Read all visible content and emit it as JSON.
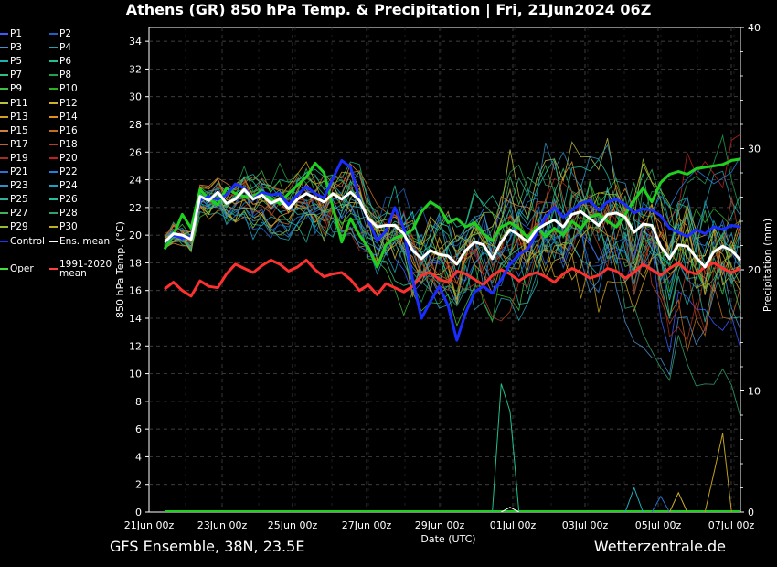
{
  "title": "Athens  (GR)  850 hPa Temp. & Precipitation | Fri, 21Jun2024 06Z",
  "footer_left": "GFS Ensemble, 38N, 23.5E",
  "footer_right": "Wetterzentrale.de",
  "legend": [
    {
      "label": "P1",
      "color": "#3a5cff"
    },
    {
      "label": "P2",
      "color": "#2060c0"
    },
    {
      "label": "P3",
      "color": "#4a90d0"
    },
    {
      "label": "P4",
      "color": "#2a9fb0"
    },
    {
      "label": "P5",
      "color": "#20b0b0"
    },
    {
      "label": "P6",
      "color": "#20c090"
    },
    {
      "label": "P7",
      "color": "#30c080"
    },
    {
      "label": "P8",
      "color": "#20a050"
    },
    {
      "label": "P9",
      "color": "#40c040"
    },
    {
      "label": "P10",
      "color": "#30b020"
    },
    {
      "label": "P11",
      "color": "#c0c040"
    },
    {
      "label": "P12",
      "color": "#d0b030"
    },
    {
      "label": "P13",
      "color": "#d0a020"
    },
    {
      "label": "P14",
      "color": "#e09020"
    },
    {
      "label": "P15",
      "color": "#d08040"
    },
    {
      "label": "P16",
      "color": "#c07020"
    },
    {
      "label": "P17",
      "color": "#c06030"
    },
    {
      "label": "P18",
      "color": "#b04020"
    },
    {
      "label": "P19",
      "color": "#a03020"
    },
    {
      "label": "P20",
      "color": "#c02020"
    },
    {
      "label": "P21",
      "color": "#3070d0"
    },
    {
      "label": "P22",
      "color": "#2080e0"
    },
    {
      "label": "P23",
      "color": "#3090c0"
    },
    {
      "label": "P24",
      "color": "#20a0c0"
    },
    {
      "label": "P25",
      "color": "#30b0a0"
    },
    {
      "label": "P26",
      "color": "#20c0a0"
    },
    {
      "label": "P27",
      "color": "#40b060"
    },
    {
      "label": "P28",
      "color": "#30a070"
    },
    {
      "label": "P29",
      "color": "#90c030"
    },
    {
      "label": "P30",
      "color": "#c0b020"
    },
    {
      "label": "Control",
      "color": "#2030ff"
    },
    {
      "label": "Ens. mean",
      "color": "#ffffff"
    },
    {
      "label": "Oper",
      "color": "#40e040"
    },
    {
      "label": "1991-2020\nmean",
      "color": "#ff4040"
    }
  ],
  "chart_data": {
    "type": "line",
    "x_ticks": [
      "21Jun 00z",
      "23Jun 00z",
      "25Jun 00z",
      "27Jun 00z",
      "29Jun 00z",
      "01Jul 00z",
      "03Jul 00z",
      "05Jul 00z",
      "07Jul 00z"
    ],
    "x_range": [
      "2024-06-21T00:00",
      "2024-07-07T00:00"
    ],
    "ylabel": "850 hPa Temp. (°C)",
    "ylim": [
      0,
      35
    ],
    "y_ticks": [
      0,
      2,
      4,
      6,
      8,
      10,
      12,
      14,
      16,
      18,
      20,
      22,
      24,
      26,
      28,
      30,
      32,
      34
    ],
    "y2label": "Precipitation (mm)",
    "y2lim": [
      0,
      40
    ],
    "y2_ticks": [
      0,
      10,
      20,
      30,
      40
    ],
    "xlabel": "Date (UTC)",
    "grid": true,
    "series": [
      {
        "name": "Ens. mean",
        "color": "#ffffff",
        "width": 3,
        "values": [
          19.5,
          20.1,
          20.0,
          19.7,
          22.8,
          22.5,
          23.1,
          22.3,
          22.6,
          23.3,
          22.6,
          22.9,
          22.3,
          22.6,
          21.9,
          22.6,
          23.0,
          22.7,
          22.4,
          23.0,
          22.6,
          23.1,
          22.5,
          21.2,
          20.6,
          20.7,
          20.7,
          20.1,
          18.9,
          18.3,
          18.9,
          18.6,
          18.5,
          17.9,
          18.9,
          19.5,
          19.3,
          18.3,
          19.5,
          20.4,
          20.0,
          19.5,
          20.4,
          20.8,
          21.1,
          20.6,
          21.5,
          21.7,
          21.2,
          20.7,
          21.5,
          21.6,
          21.3,
          20.2,
          20.8,
          20.7,
          19.2,
          18.3,
          19.3,
          19.2,
          18.4,
          17.7,
          18.8,
          19.2,
          18.9,
          18.2
        ]
      },
      {
        "name": "Control",
        "color": "#1a2cff",
        "width": 3,
        "values": [
          19.5,
          20.0,
          19.8,
          19.9,
          22.5,
          22.8,
          22.6,
          22.9,
          23.7,
          23.4,
          22.6,
          23.1,
          22.9,
          23.0,
          22.2,
          22.9,
          23.5,
          23.0,
          22.7,
          24.1,
          25.4,
          24.9,
          22.6,
          21.1,
          19.6,
          20.3,
          22.0,
          20.5,
          16.8,
          14.0,
          15.2,
          16.3,
          14.9,
          12.4,
          14.4,
          15.9,
          16.3,
          15.8,
          16.8,
          17.9,
          18.6,
          19.0,
          20.1,
          21.3,
          22.0,
          21.3,
          21.8,
          22.3,
          22.5,
          21.8,
          22.4,
          22.6,
          22.2,
          21.6,
          21.9,
          21.8,
          21.4,
          20.5,
          20.2,
          19.9,
          20.4,
          20.1,
          20.6,
          20.4,
          20.7,
          20.6
        ]
      },
      {
        "name": "Oper",
        "color": "#20d020",
        "width": 3,
        "values": [
          19.0,
          20.0,
          21.5,
          20.5,
          23.3,
          22.6,
          22.2,
          23.4,
          23.0,
          22.8,
          22.8,
          23.2,
          22.6,
          22.3,
          23.0,
          23.6,
          24.2,
          25.2,
          24.5,
          22.0,
          19.5,
          21.2,
          20.0,
          19.1,
          17.7,
          19.3,
          19.8,
          20.0,
          20.4,
          21.7,
          22.4,
          22.0,
          20.9,
          21.2,
          20.6,
          20.9,
          20.1,
          19.6,
          20.6,
          20.9,
          20.5,
          19.8,
          20.6,
          19.9,
          20.5,
          20.0,
          21.0,
          20.5,
          21.3,
          21.5,
          21.0,
          20.6,
          21.5,
          22.5,
          23.4,
          22.4,
          23.8,
          24.4,
          24.6,
          24.4,
          24.8,
          24.9,
          25.0,
          25.1,
          25.4,
          25.5
        ]
      },
      {
        "name": "1991-2020 mean",
        "color": "#ff3030",
        "width": 3,
        "values": [
          16.1,
          16.6,
          16.0,
          15.6,
          16.7,
          16.3,
          16.2,
          17.2,
          17.9,
          17.6,
          17.3,
          17.8,
          18.2,
          17.9,
          17.4,
          17.7,
          18.2,
          17.5,
          17.0,
          17.2,
          17.3,
          16.8,
          16.0,
          16.4,
          15.7,
          16.5,
          16.2,
          15.9,
          16.3,
          17.1,
          17.3,
          16.8,
          16.6,
          17.4,
          17.2,
          16.8,
          16.4,
          17.1,
          17.5,
          17.2,
          16.7,
          17.1,
          17.3,
          17.0,
          16.6,
          17.2,
          17.6,
          17.3,
          16.9,
          17.1,
          17.6,
          17.4,
          16.9,
          17.3,
          17.9,
          17.5,
          17.1,
          17.6,
          18.0,
          17.4,
          17.2,
          17.7,
          18.0,
          17.6,
          17.3,
          17.6
        ]
      }
    ],
    "precip_series": [
      {
        "name": "P26",
        "color": "#20c0a0",
        "values": [
          0,
          0,
          0,
          0,
          0,
          0,
          0,
          0,
          0,
          0,
          0,
          0,
          0,
          0,
          0,
          0,
          0,
          0,
          0,
          0,
          0,
          0,
          0,
          0,
          0,
          0,
          0,
          0,
          0,
          0,
          0,
          0,
          0,
          0,
          0,
          0,
          0,
          0,
          0,
          0,
          0,
          0,
          0,
          0,
          0,
          0,
          0,
          0,
          0,
          0,
          0,
          0,
          0,
          0,
          0,
          0,
          0,
          0,
          0,
          0,
          0,
          0,
          0,
          0,
          0,
          0
        ]
      },
      {
        "name": "P27",
        "color": "#30a070",
        "values": [
          0,
          0,
          0,
          0,
          0,
          0,
          0,
          0,
          0,
          0,
          0,
          0,
          0,
          0,
          0,
          0,
          0,
          0,
          0,
          0,
          0,
          0,
          0,
          0,
          0,
          0,
          0,
          0,
          0,
          0,
          0,
          0,
          0,
          0,
          0,
          0,
          0,
          0,
          0,
          0,
          0,
          0,
          0,
          0,
          0,
          0,
          0,
          0,
          0,
          0,
          0,
          0,
          0,
          0,
          0,
          0,
          0,
          0,
          0,
          0,
          0,
          0,
          0,
          0,
          0,
          0
        ]
      }
    ],
    "precip_spikes": [
      {
        "color": "#20c090",
        "x": [
          37,
          38,
          39,
          40
        ],
        "values": [
          0,
          10.6,
          8.3,
          0
        ]
      },
      {
        "color": "#c0a020",
        "x": [
          61,
          62,
          63,
          64
        ],
        "values": [
          0,
          3.2,
          6.5,
          0
        ]
      },
      {
        "color": "#20b0c0",
        "x": [
          52,
          53,
          54
        ],
        "values": [
          0,
          2.0,
          0
        ]
      },
      {
        "color": "#3070d0",
        "x": [
          55,
          56,
          57
        ],
        "values": [
          0,
          1.3,
          0
        ]
      },
      {
        "color": "#d0b030",
        "x": [
          57,
          58,
          59
        ],
        "values": [
          0,
          1.6,
          0
        ]
      },
      {
        "color": "#ffffff",
        "x": [
          38,
          39,
          40
        ],
        "values": [
          0,
          0.4,
          0
        ]
      }
    ]
  }
}
